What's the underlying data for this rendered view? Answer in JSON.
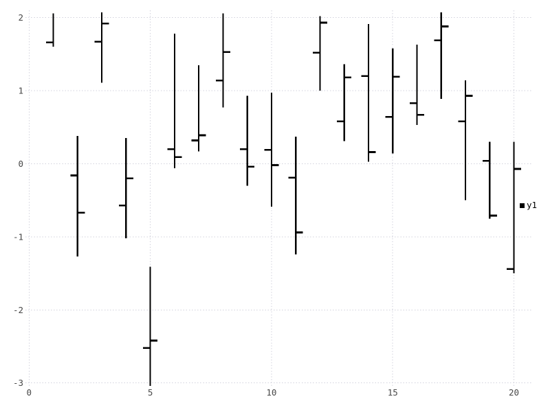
{
  "chart_data": {
    "type": "ohlc-financebars",
    "title": "",
    "xlabel": "",
    "ylabel": "",
    "grid": true,
    "xlim": [
      -0.15,
      20.75
    ],
    "ylim": [
      -3.05,
      2.1
    ],
    "x_ticks": [
      0,
      5,
      10,
      15,
      20
    ],
    "y_ticks": [
      2,
      1,
      0,
      -1,
      -2,
      -3
    ],
    "legend": {
      "position": "outside-right-middle",
      "entries": [
        {
          "label": "y1",
          "marker": "filled-square",
          "color": "#000000"
        }
      ]
    },
    "series": [
      {
        "name": "y1",
        "points": [
          {
            "x": 1,
            "open": 1.66,
            "high": 2.06,
            "low": 1.6,
            "close": null
          },
          {
            "x": 2,
            "open": -0.16,
            "high": 0.38,
            "low": -1.27,
            "close": -0.67
          },
          {
            "x": 3,
            "open": 1.67,
            "high": 2.07,
            "low": 1.11,
            "close": 1.92
          },
          {
            "x": 4,
            "open": -0.57,
            "high": 0.35,
            "low": -1.02,
            "close": -0.2
          },
          {
            "x": 5,
            "open": -2.52,
            "high": -1.41,
            "low": -3.04,
            "close": -2.42
          },
          {
            "x": 6,
            "open": 0.2,
            "high": 1.78,
            "low": -0.06,
            "close": 0.09
          },
          {
            "x": 7,
            "open": 0.32,
            "high": 1.35,
            "low": 0.17,
            "close": 0.39
          },
          {
            "x": 8,
            "open": 1.14,
            "high": 2.06,
            "low": 0.77,
            "close": 1.53
          },
          {
            "x": 9,
            "open": 0.2,
            "high": 0.93,
            "low": -0.3,
            "close": -0.04
          },
          {
            "x": 10,
            "open": 0.19,
            "high": 0.97,
            "low": -0.59,
            "close": -0.02
          },
          {
            "x": 11,
            "open": -0.19,
            "high": 0.37,
            "low": -1.24,
            "close": -0.94
          },
          {
            "x": 12,
            "open": 1.52,
            "high": 2.02,
            "low": 1.0,
            "close": 1.93
          },
          {
            "x": 13,
            "open": 0.58,
            "high": 1.36,
            "low": 0.31,
            "close": 1.18
          },
          {
            "x": 14,
            "open": 1.2,
            "high": 1.91,
            "low": 0.03,
            "close": 0.16
          },
          {
            "x": 15,
            "open": 0.64,
            "high": 1.58,
            "low": 0.14,
            "close": 1.19
          },
          {
            "x": 16,
            "open": 0.83,
            "high": 1.63,
            "low": 0.53,
            "close": 0.67
          },
          {
            "x": 17,
            "open": 1.69,
            "high": 2.07,
            "low": 0.89,
            "close": 1.88
          },
          {
            "x": 18,
            "open": 0.58,
            "high": 1.14,
            "low": -0.5,
            "close": 0.93
          },
          {
            "x": 19,
            "open": 0.04,
            "high": 0.3,
            "low": -0.75,
            "close": -0.71
          },
          {
            "x": 20,
            "open": -1.44,
            "high": 0.3,
            "low": -1.5,
            "close": -0.07
          }
        ]
      }
    ]
  },
  "colors": {
    "bar": "#000000",
    "grid": "#d2d2dc",
    "tick_label": "#474747",
    "legend_text": "#000000",
    "background": "#ffffff"
  }
}
